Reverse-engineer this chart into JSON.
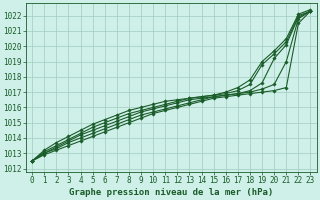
{
  "title": "Graphe pression niveau de la mer (hPa)",
  "bg_color": "#cff0e8",
  "grid_color": "#a0ccbe",
  "line_color": "#1a5c2a",
  "xlim": [
    -0.5,
    23.5
  ],
  "ylim": [
    1011.8,
    1022.8
  ],
  "xticks": [
    0,
    1,
    2,
    3,
    4,
    5,
    6,
    7,
    8,
    9,
    10,
    11,
    12,
    13,
    14,
    15,
    16,
    17,
    18,
    19,
    20,
    21,
    22,
    23
  ],
  "yticks": [
    1012,
    1013,
    1014,
    1015,
    1016,
    1017,
    1018,
    1019,
    1020,
    1021,
    1022
  ],
  "series": [
    [
      1012.5,
      1012.9,
      1013.2,
      1013.5,
      1013.8,
      1014.1,
      1014.4,
      1014.7,
      1015.0,
      1015.3,
      1015.6,
      1015.8,
      1016.0,
      1016.2,
      1016.4,
      1016.6,
      1016.7,
      1016.8,
      1016.9,
      1017.0,
      1017.1,
      1017.3,
      1021.5,
      1022.3
    ],
    [
      1012.5,
      1013.0,
      1013.3,
      1013.7,
      1014.0,
      1014.3,
      1014.6,
      1014.9,
      1015.2,
      1015.5,
      1015.7,
      1015.9,
      1016.1,
      1016.3,
      1016.5,
      1016.7,
      1016.8,
      1016.9,
      1017.0,
      1017.2,
      1017.5,
      1019.0,
      1021.8,
      1022.3
    ],
    [
      1012.5,
      1013.0,
      1013.4,
      1013.8,
      1014.2,
      1014.5,
      1014.8,
      1015.1,
      1015.4,
      1015.7,
      1015.9,
      1016.1,
      1016.3,
      1016.5,
      1016.6,
      1016.7,
      1016.8,
      1016.9,
      1017.1,
      1017.6,
      1019.2,
      1020.1,
      1021.9,
      1022.3
    ],
    [
      1012.5,
      1013.1,
      1013.5,
      1013.9,
      1014.3,
      1014.7,
      1015.0,
      1015.3,
      1015.6,
      1015.8,
      1016.0,
      1016.2,
      1016.4,
      1016.6,
      1016.7,
      1016.8,
      1016.9,
      1017.1,
      1017.5,
      1018.8,
      1019.5,
      1020.3,
      1022.0,
      1022.3
    ],
    [
      1012.5,
      1013.2,
      1013.7,
      1014.1,
      1014.5,
      1014.9,
      1015.2,
      1015.5,
      1015.8,
      1016.0,
      1016.2,
      1016.4,
      1016.5,
      1016.6,
      1016.7,
      1016.8,
      1017.0,
      1017.3,
      1017.8,
      1019.0,
      1019.7,
      1020.5,
      1022.1,
      1022.4
    ]
  ],
  "marker": "D",
  "marker_size": 1.8,
  "linewidth": 0.8,
  "tick_fontsize": 5.5,
  "xlabel_fontsize": 6.5
}
